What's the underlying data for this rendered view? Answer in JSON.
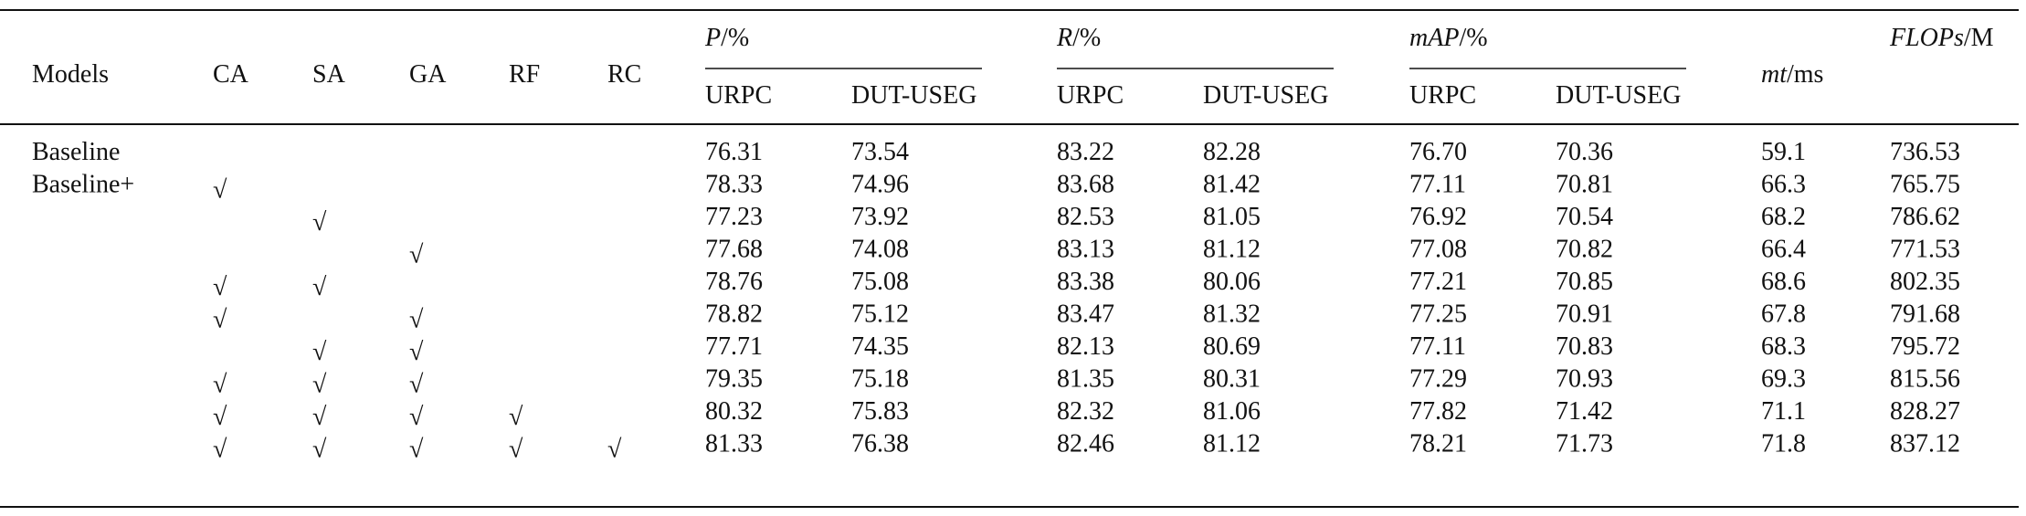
{
  "table": {
    "header": {
      "columns": [
        "Models",
        "CA",
        "SA",
        "GA",
        "RF",
        "RC"
      ],
      "groups": [
        {
          "symbol": "P",
          "unit": "/%",
          "subcolumns": [
            "URPC",
            "DUT-USEG"
          ]
        },
        {
          "symbol": "R",
          "unit": "/%",
          "subcolumns": [
            "URPC",
            "DUT-USEG"
          ]
        },
        {
          "symbol": "mAP",
          "unit": "/%",
          "subcolumns": [
            "URPC",
            "DUT-USEG"
          ]
        }
      ],
      "mt": {
        "symbol": "mt",
        "unit": "/ms"
      },
      "flops": {
        "symbol": "FLOPs",
        "unit": "/M"
      }
    },
    "rows": [
      [
        "Baseline",
        null,
        null,
        null,
        null,
        null,
        "76.31",
        "73.54",
        "83.22",
        "82.28",
        "76.70",
        "70.36",
        "59.1",
        "736.53"
      ],
      [
        "Baseline+",
        "√",
        null,
        null,
        null,
        null,
        "78.33",
        "74.96",
        "83.68",
        "81.42",
        "77.11",
        "70.81",
        "66.3",
        "765.75"
      ],
      [
        null,
        null,
        "√",
        null,
        null,
        null,
        "77.23",
        "73.92",
        "82.53",
        "81.05",
        "76.92",
        "70.54",
        "68.2",
        "786.62"
      ],
      [
        null,
        null,
        null,
        "√",
        null,
        null,
        "77.68",
        "74.08",
        "83.13",
        "81.12",
        "77.08",
        "70.82",
        "66.4",
        "771.53"
      ],
      [
        null,
        "√",
        "√",
        null,
        null,
        null,
        "78.76",
        "75.08",
        "83.38",
        "80.06",
        "77.21",
        "70.85",
        "68.6",
        "802.35"
      ],
      [
        null,
        "√",
        null,
        "√",
        null,
        null,
        "78.82",
        "75.12",
        "83.47",
        "81.32",
        "77.25",
        "70.91",
        "67.8",
        "791.68"
      ],
      [
        null,
        null,
        "√",
        "√",
        null,
        null,
        "77.71",
        "74.35",
        "82.13",
        "80.69",
        "77.11",
        "70.83",
        "68.3",
        "795.72"
      ],
      [
        null,
        "√",
        "√",
        "√",
        null,
        null,
        "79.35",
        "75.18",
        "81.35",
        "80.31",
        "77.29",
        "70.93",
        "69.3",
        "815.56"
      ],
      [
        null,
        "√",
        "√",
        "√",
        "√",
        null,
        "80.32",
        "75.83",
        "82.32",
        "81.06",
        "77.82",
        "71.42",
        "71.1",
        "828.27"
      ],
      [
        null,
        "√",
        "√",
        "√",
        "√",
        "√",
        "81.33",
        "76.38",
        "82.46",
        "81.12",
        "78.21",
        "71.73",
        "71.8",
        "837.12"
      ]
    ]
  }
}
